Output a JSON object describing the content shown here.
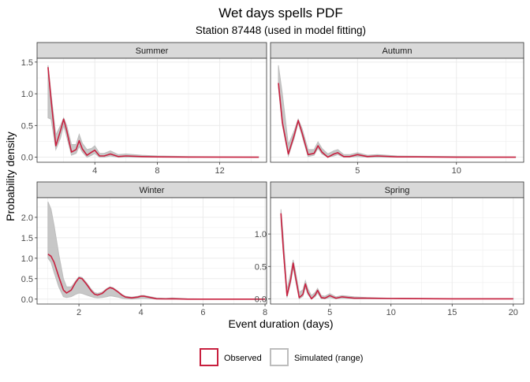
{
  "chart_data": {
    "type": "line",
    "title": "Wet days spells PDF",
    "subtitle": "Station 87448 (used in model fitting)",
    "xlabel": "Event duration (days)",
    "ylabel": "Probability density",
    "grid": true,
    "legend_placement": "bottom",
    "colors": {
      "observed": "#c8203f",
      "simulated": "#bdbdbd",
      "strip": "#d9d9d9",
      "grid": "#ebebeb"
    },
    "legend": [
      {
        "key": "observed",
        "label": "Observed"
      },
      {
        "key": "simulated",
        "label": "Simulated (range)"
      }
    ],
    "panels": [
      {
        "name": "Summer",
        "xlim": [
          0.3,
          15.0
        ],
        "ylim": [
          -0.08,
          1.56
        ],
        "xticks": [
          4,
          8,
          12
        ],
        "yticks": [
          0.0,
          0.5,
          1.0,
          1.5
        ],
        "ytick_labels": [
          "0.0",
          "0.5",
          "1.0",
          "1.5"
        ],
        "observed": {
          "x": [
            1.0,
            1.2,
            1.5,
            1.8,
            2.0,
            2.2,
            2.5,
            2.8,
            3.0,
            3.2,
            3.5,
            3.8,
            4.0,
            4.3,
            4.6,
            5.0,
            5.5,
            6.0,
            7.0,
            8.0,
            10.0,
            14.5
          ],
          "y": [
            1.42,
            0.9,
            0.18,
            0.42,
            0.6,
            0.42,
            0.08,
            0.12,
            0.26,
            0.13,
            0.03,
            0.08,
            0.11,
            0.02,
            0.02,
            0.05,
            0.01,
            0.02,
            0.01,
            0.005,
            0.002,
            0.0
          ]
        },
        "sim_upper": {
          "x": [
            1.0,
            1.2,
            1.5,
            1.8,
            2.0,
            2.2,
            2.5,
            2.8,
            3.0,
            3.2,
            3.5,
            3.8,
            4.0,
            4.3,
            4.6,
            5.0,
            5.5,
            6.0,
            7.0,
            8.0,
            10.0,
            14.5
          ],
          "y": [
            1.45,
            1.0,
            0.35,
            0.5,
            0.62,
            0.5,
            0.2,
            0.2,
            0.36,
            0.22,
            0.12,
            0.14,
            0.18,
            0.06,
            0.06,
            0.1,
            0.04,
            0.05,
            0.03,
            0.02,
            0.01,
            0.005
          ]
        },
        "sim_lower": {
          "x": [
            1.0,
            1.2,
            1.5,
            1.8,
            2.0,
            2.2,
            2.5,
            2.8,
            3.0,
            3.2,
            3.5,
            3.8,
            4.0,
            4.3,
            4.6,
            5.0,
            5.5,
            6.0,
            7.0,
            8.0,
            10.0,
            14.5
          ],
          "y": [
            0.62,
            0.6,
            0.12,
            0.3,
            0.5,
            0.32,
            0.03,
            0.06,
            0.17,
            0.08,
            0.0,
            0.03,
            0.06,
            0.0,
            0.0,
            0.02,
            0.0,
            0.0,
            0.0,
            0.0,
            0.0,
            0.0
          ]
        }
      },
      {
        "name": "Autumn",
        "xlim": [
          0.6,
          13.4
        ],
        "ylim": [
          -0.08,
          1.56
        ],
        "xticks": [
          5,
          10
        ],
        "yticks": [
          0.0,
          0.5,
          1.0,
          1.5
        ],
        "ytick_labels": [
          "",
          "",
          "",
          ""
        ],
        "observed": {
          "x": [
            1.0,
            1.2,
            1.5,
            1.8,
            2.0,
            2.2,
            2.5,
            2.8,
            3.0,
            3.2,
            3.5,
            3.8,
            4.0,
            4.3,
            4.6,
            5.0,
            5.5,
            6.0,
            7.0,
            8.0,
            10.0,
            13.0
          ],
          "y": [
            1.17,
            0.55,
            0.05,
            0.35,
            0.58,
            0.38,
            0.04,
            0.06,
            0.18,
            0.08,
            0.0,
            0.05,
            0.07,
            0.01,
            0.01,
            0.04,
            0.01,
            0.02,
            0.005,
            0.005,
            0.0,
            0.0
          ]
        },
        "sim_upper": {
          "x": [
            1.0,
            1.2,
            1.5,
            1.8,
            2.0,
            2.2,
            2.5,
            2.8,
            3.0,
            3.2,
            3.5,
            3.8,
            4.0,
            4.3,
            4.6,
            5.0,
            5.5,
            6.0,
            7.0,
            8.0,
            10.0,
            13.0
          ],
          "y": [
            1.45,
            1.0,
            0.2,
            0.42,
            0.6,
            0.45,
            0.12,
            0.12,
            0.24,
            0.14,
            0.05,
            0.1,
            0.12,
            0.04,
            0.04,
            0.07,
            0.03,
            0.04,
            0.02,
            0.015,
            0.01,
            0.005
          ]
        },
        "sim_lower": {
          "x": [
            1.0,
            1.2,
            1.5,
            1.8,
            2.0,
            2.2,
            2.5,
            2.8,
            3.0,
            3.2,
            3.5,
            3.8,
            4.0,
            4.3,
            4.6,
            5.0,
            5.5,
            6.0,
            7.0,
            8.0,
            10.0,
            13.0
          ],
          "y": [
            1.1,
            0.5,
            0.02,
            0.3,
            0.55,
            0.33,
            0.01,
            0.03,
            0.14,
            0.05,
            0.0,
            0.02,
            0.04,
            0.0,
            0.0,
            0.01,
            0.0,
            0.0,
            0.0,
            0.0,
            0.0,
            0.0
          ]
        }
      },
      {
        "name": "Winter",
        "xlim": [
          0.65,
          8.05
        ],
        "ylim": [
          -0.12,
          2.48
        ],
        "xticks": [
          2,
          4,
          6,
          8
        ],
        "yticks": [
          0.0,
          0.5,
          1.0,
          1.5,
          2.0
        ],
        "ytick_labels": [
          "0.0",
          "0.5",
          "1.0",
          "1.5",
          "2.0"
        ],
        "observed": {
          "x": [
            1.0,
            1.1,
            1.2,
            1.35,
            1.5,
            1.6,
            1.75,
            1.9,
            2.0,
            2.1,
            2.25,
            2.4,
            2.5,
            2.6,
            2.75,
            2.9,
            3.0,
            3.1,
            3.25,
            3.4,
            3.5,
            3.7,
            3.9,
            4.0,
            4.1,
            4.3,
            4.5,
            4.8,
            5.0,
            5.5,
            6.0,
            7.0,
            8.0
          ],
          "y": [
            1.1,
            1.05,
            0.9,
            0.55,
            0.22,
            0.15,
            0.22,
            0.42,
            0.52,
            0.5,
            0.36,
            0.2,
            0.12,
            0.1,
            0.14,
            0.24,
            0.28,
            0.26,
            0.18,
            0.09,
            0.05,
            0.03,
            0.05,
            0.07,
            0.07,
            0.04,
            0.01,
            0.005,
            0.01,
            0.0,
            0.0,
            0.0,
            0.0
          ]
        },
        "sim_upper": {
          "x": [
            1.0,
            1.1,
            1.2,
            1.35,
            1.5,
            1.6,
            1.75,
            1.9,
            2.0,
            2.1,
            2.25,
            2.4,
            2.5,
            2.6,
            2.75,
            2.9,
            3.0,
            3.1,
            3.25,
            3.4,
            3.5,
            3.7,
            3.9,
            4.0,
            4.1,
            4.3,
            4.5,
            4.8,
            5.0,
            5.5,
            6.0,
            7.0,
            8.0
          ],
          "y": [
            2.38,
            2.2,
            1.8,
            1.1,
            0.5,
            0.3,
            0.3,
            0.45,
            0.55,
            0.53,
            0.4,
            0.24,
            0.16,
            0.14,
            0.17,
            0.26,
            0.3,
            0.28,
            0.2,
            0.11,
            0.07,
            0.05,
            0.07,
            0.09,
            0.09,
            0.06,
            0.03,
            0.02,
            0.03,
            0.01,
            0.005,
            0.005,
            0.0
          ]
        },
        "sim_lower": {
          "x": [
            1.0,
            1.1,
            1.2,
            1.35,
            1.5,
            1.6,
            1.75,
            1.9,
            2.0,
            2.1,
            2.25,
            2.4,
            2.5,
            2.6,
            2.75,
            2.9,
            3.0,
            3.1,
            3.25,
            3.4,
            3.5,
            3.7,
            3.9,
            4.0,
            4.1,
            4.3,
            4.5,
            4.8,
            5.0,
            5.5,
            6.0,
            7.0,
            8.0
          ],
          "y": [
            1.0,
            0.9,
            0.65,
            0.3,
            0.06,
            0.04,
            0.06,
            0.12,
            0.15,
            0.14,
            0.1,
            0.06,
            0.04,
            0.03,
            0.04,
            0.06,
            0.08,
            0.07,
            0.05,
            0.02,
            0.01,
            0.0,
            0.01,
            0.02,
            0.02,
            0.01,
            0.0,
            0.0,
            0.0,
            0.0,
            0.0,
            0.0,
            0.0
          ]
        }
      },
      {
        "name": "Spring",
        "xlim": [
          0.15,
          20.85
        ],
        "ylim": [
          -0.08,
          1.56
        ],
        "xticks": [
          5,
          10,
          15,
          20
        ],
        "yticks": [
          0.0,
          0.5,
          1.0
        ],
        "ytick_labels": [
          "0.0",
          "0.5",
          "1.0"
        ],
        "observed": {
          "x": [
            1.0,
            1.2,
            1.5,
            1.8,
            2.0,
            2.2,
            2.5,
            2.8,
            3.0,
            3.2,
            3.5,
            3.8,
            4.0,
            4.3,
            4.6,
            5.0,
            5.5,
            6.0,
            7.0,
            8.0,
            10.0,
            15.0,
            20.0
          ],
          "y": [
            1.32,
            0.75,
            0.05,
            0.3,
            0.55,
            0.33,
            0.02,
            0.07,
            0.23,
            0.1,
            0.0,
            0.06,
            0.13,
            0.02,
            0.01,
            0.05,
            0.01,
            0.03,
            0.01,
            0.01,
            0.005,
            0.0,
            0.0
          ]
        },
        "sim_upper": {
          "x": [
            1.0,
            1.2,
            1.5,
            1.8,
            2.0,
            2.2,
            2.5,
            2.8,
            3.0,
            3.2,
            3.5,
            3.8,
            4.0,
            4.3,
            4.6,
            5.0,
            5.5,
            6.0,
            7.0,
            8.0,
            10.0,
            15.0,
            20.0
          ],
          "y": [
            1.38,
            0.95,
            0.14,
            0.4,
            0.6,
            0.42,
            0.1,
            0.14,
            0.28,
            0.16,
            0.05,
            0.1,
            0.16,
            0.05,
            0.04,
            0.08,
            0.03,
            0.05,
            0.03,
            0.02,
            0.01,
            0.005,
            0.005
          ]
        },
        "sim_lower": {
          "x": [
            1.0,
            1.2,
            1.5,
            1.8,
            2.0,
            2.2,
            2.5,
            2.8,
            3.0,
            3.2,
            3.5,
            3.8,
            4.0,
            4.3,
            4.6,
            5.0,
            5.5,
            6.0,
            7.0,
            8.0,
            10.0,
            15.0,
            20.0
          ],
          "y": [
            1.2,
            0.7,
            0.02,
            0.25,
            0.48,
            0.28,
            0.0,
            0.04,
            0.18,
            0.07,
            0.0,
            0.03,
            0.09,
            0.0,
            0.0,
            0.02,
            0.0,
            0.01,
            0.0,
            0.0,
            0.0,
            0.0,
            0.0
          ]
        }
      }
    ]
  }
}
